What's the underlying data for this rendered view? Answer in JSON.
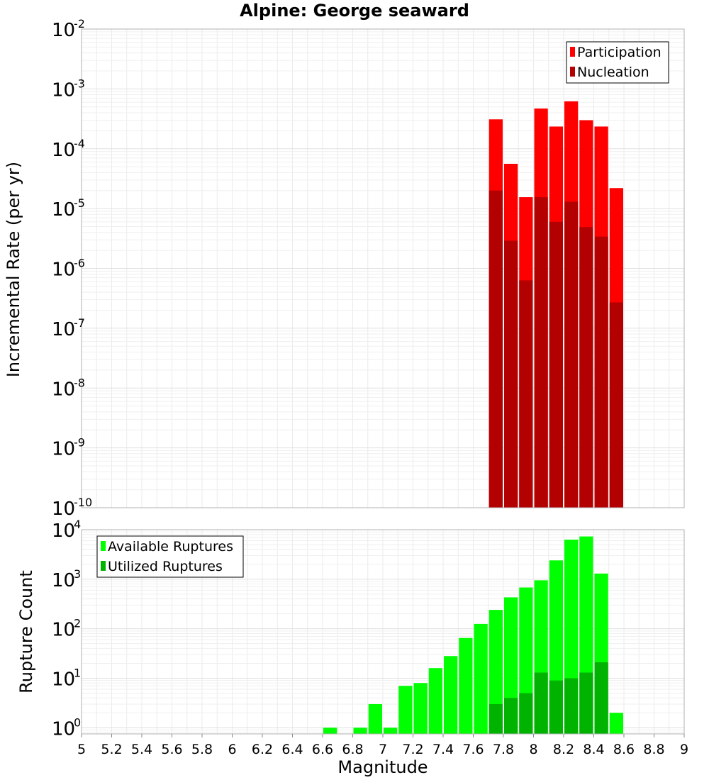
{
  "title": "Alpine: George seaward",
  "chart_data": [
    {
      "type": "bar",
      "ylabel": "Incremental Rate (per yr)",
      "yscale": "log",
      "ylim": [
        1e-10,
        0.01
      ],
      "xlim": [
        5,
        9
      ],
      "bin_width": 0.1,
      "legend_position": "top-right",
      "y_ticks": [
        {
          "base": "10",
          "exp": "-2"
        },
        {
          "base": "10",
          "exp": "-3"
        },
        {
          "base": "10",
          "exp": "-4"
        },
        {
          "base": "10",
          "exp": "-5"
        },
        {
          "base": "10",
          "exp": "-6"
        },
        {
          "base": "10",
          "exp": "-7"
        },
        {
          "base": "10",
          "exp": "-8"
        },
        {
          "base": "10",
          "exp": "-9"
        },
        {
          "base": "10",
          "exp": "-10"
        }
      ],
      "series": [
        {
          "name": "Participation",
          "color": "#ff0000",
          "x": [
            7.75,
            7.85,
            7.95,
            8.05,
            8.15,
            8.25,
            8.35,
            8.45,
            8.55
          ],
          "values": [
            0.00031,
            5.6e-05,
            1.55e-05,
            0.00047,
            0.000235,
            0.00062,
            0.0003,
            0.000235,
            2.2e-05
          ]
        },
        {
          "name": "Nucleation",
          "color": "#b30000",
          "x": [
            7.75,
            7.85,
            7.95,
            8.05,
            8.15,
            8.25,
            8.35,
            8.45,
            8.55
          ],
          "values": [
            2e-05,
            2.9e-06,
            6.3e-07,
            1.55e-05,
            6e-06,
            1.3e-05,
            4.9e-06,
            3.4e-06,
            2.7e-07
          ]
        }
      ]
    },
    {
      "type": "bar",
      "ylabel": "Rupture Count",
      "xlabel": "Magnitude",
      "yscale": "log",
      "ylim": [
        0.75,
        10000
      ],
      "xlim": [
        5,
        9
      ],
      "bin_width": 0.1,
      "legend_position": "top-left",
      "y_ticks": [
        {
          "base": "10",
          "exp": "4"
        },
        {
          "base": "10",
          "exp": "3"
        },
        {
          "base": "10",
          "exp": "2"
        },
        {
          "base": "10",
          "exp": "1"
        },
        {
          "base": "10",
          "exp": "0"
        }
      ],
      "x_ticks": [
        "5",
        "5.2",
        "5.4",
        "5.6",
        "5.8",
        "6",
        "6.2",
        "6.4",
        "6.6",
        "6.8",
        "7",
        "7.2",
        "7.4",
        "7.6",
        "7.8",
        "8",
        "8.2",
        "8.4",
        "8.6",
        "8.8",
        "9"
      ],
      "series": [
        {
          "name": "Available Ruptures",
          "color": "#00ff00",
          "x": [
            6.65,
            6.85,
            6.95,
            7.05,
            7.15,
            7.25,
            7.35,
            7.45,
            7.55,
            7.65,
            7.75,
            7.85,
            7.95,
            8.05,
            8.15,
            8.25,
            8.35,
            8.45,
            8.55
          ],
          "values": [
            1,
            1,
            3,
            1,
            7,
            8,
            16,
            28,
            65,
            125,
            240,
            430,
            680,
            950,
            2400,
            6300,
            7300,
            1300,
            2
          ]
        },
        {
          "name": "Utilized Ruptures",
          "color": "#00b300",
          "x": [
            7.75,
            7.85,
            7.95,
            8.05,
            8.15,
            8.25,
            8.35,
            8.45
          ],
          "values": [
            3,
            4,
            5,
            13,
            9,
            10,
            13,
            21
          ]
        }
      ]
    }
  ]
}
